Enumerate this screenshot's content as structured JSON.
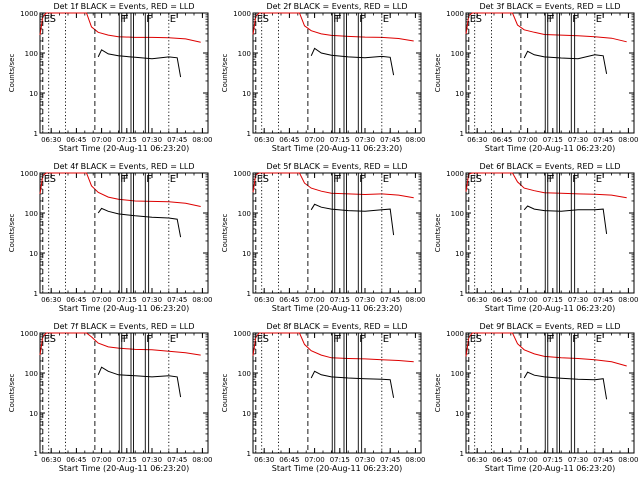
{
  "figure": {
    "colors": {
      "events": "#000000",
      "lld": "#dd0000",
      "axes": "#000000"
    },
    "panels": [
      {
        "title": "Det 1f BLACK = Events, RED = LLD"
      },
      {
        "title": "Det 2f BLACK = Events, RED = LLD"
      },
      {
        "title": "Det 3f BLACK = Events, RED = LLD"
      },
      {
        "title": "Det 4f BLACK = Events, RED = LLD"
      },
      {
        "title": "Det 5f BLACK = Events, RED = LLD"
      },
      {
        "title": "Det 6f BLACK = Events, RED = LLD"
      },
      {
        "title": "Det 7f BLACK = Events, RED = LLD"
      },
      {
        "title": "Det 8f BLACK = Events, RED = LLD"
      },
      {
        "title": "Det 9f BLACK = Events, RED = LLD"
      }
    ]
  },
  "chart_data": {
    "type": "line",
    "layout": "3x3 grid",
    "xlabel": "Start Time (20-Aug-11 06:23:20)",
    "ylabel": "Counts/sec",
    "xlim": [
      "06:23:20",
      "08:03:20"
    ],
    "xticks": [
      "06:30",
      "06:45",
      "07:00",
      "07:15",
      "07:30",
      "07:45",
      "08:00"
    ],
    "ylim": [
      1,
      1000
    ],
    "yscale": "log",
    "yticks": [
      "1",
      "10",
      "100",
      "1000"
    ],
    "markers": [
      {
        "label": "E",
        "time": "06:25:00",
        "style": "dashed"
      },
      {
        "label": "S",
        "time": "06:28:30",
        "style": "dotted"
      },
      {
        "label": "",
        "time": "06:38:30",
        "style": "dotted"
      },
      {
        "label": "",
        "time": "06:56:00",
        "style": "dashed"
      },
      {
        "label": "F",
        "time": "07:10:30",
        "style": "solid"
      },
      {
        "label": "F",
        "time": "07:12:00",
        "style": "solid"
      },
      {
        "label": "",
        "time": "07:17:30",
        "style": "solid"
      },
      {
        "label": "",
        "time": "07:19:00",
        "style": "solid"
      },
      {
        "label": "F",
        "time": "07:26:00",
        "style": "solid"
      },
      {
        "label": "",
        "time": "07:28:00",
        "style": "solid"
      },
      {
        "label": "E",
        "time": "07:40:00",
        "style": "dotted"
      }
    ],
    "panels": [
      {
        "title": "Det 1f BLACK = Events, RED = LLD",
        "series": [
          {
            "x": [
              "06:23:20",
              "06:25:00",
              "06:27:00",
              "06:28:00",
              "06:29:00",
              "06:50:00",
              "06:51:00",
              "06:54:00",
              "06:58:00",
              "07:04:00",
              "07:10:00",
              "07:20:00",
              "07:30:00",
              "07:40:00",
              "07:50:00",
              "07:59:00"
            ],
            "values": [
              280,
              800,
              1000,
              1000,
              1000,
              1000,
              1000,
              450,
              330,
              280,
              255,
              245,
              245,
              240,
              225,
              185
            ],
            "color": "#dd0000"
          },
          {
            "x": [
              "06:58:00",
              "07:00:00",
              "07:04:00",
              "07:10:00",
              "07:20:00",
              "07:30:00",
              "07:40:00",
              "07:45:00",
              "07:47:00"
            ],
            "values": [
              80,
              120,
              95,
              85,
              78,
              72,
              80,
              76,
              25
            ],
            "color": "#000000"
          }
        ]
      },
      {
        "title": "Det 2f BLACK = Events, RED = LLD",
        "series": [
          {
            "x": [
              "06:23:20",
              "06:25:00",
              "06:27:00",
              "06:28:00",
              "06:29:00",
              "06:50:00",
              "06:51:00",
              "06:54:00",
              "06:58:00",
              "07:04:00",
              "07:10:00",
              "07:20:00",
              "07:30:00",
              "07:40:00",
              "07:50:00",
              "07:59:00"
            ],
            "values": [
              290,
              820,
              1000,
              1000,
              1000,
              1000,
              1000,
              480,
              360,
              300,
              275,
              260,
              250,
              245,
              230,
              200
            ],
            "color": "#dd0000"
          },
          {
            "x": [
              "06:58:00",
              "07:00:00",
              "07:04:00",
              "07:10:00",
              "07:20:00",
              "07:30:00",
              "07:40:00",
              "07:45:00",
              "07:47:00"
            ],
            "values": [
              85,
              130,
              100,
              88,
              80,
              76,
              82,
              78,
              28
            ],
            "color": "#000000"
          }
        ]
      },
      {
        "title": "Det 3f BLACK = Events, RED = LLD",
        "series": [
          {
            "x": [
              "06:23:20",
              "06:25:00",
              "06:27:00",
              "06:28:00",
              "06:29:00",
              "06:50:00",
              "06:51:00",
              "06:54:00",
              "06:58:00",
              "07:04:00",
              "07:10:00",
              "07:20:00",
              "07:30:00",
              "07:40:00",
              "07:50:00",
              "07:59:00"
            ],
            "values": [
              300,
              850,
              1000,
              1000,
              1000,
              1000,
              1000,
              500,
              380,
              330,
              290,
              280,
              270,
              255,
              235,
              190
            ],
            "color": "#dd0000"
          },
          {
            "x": [
              "06:58:00",
              "07:00:00",
              "07:04:00",
              "07:10:00",
              "07:20:00",
              "07:30:00",
              "07:40:00",
              "07:45:00",
              "07:47:00"
            ],
            "values": [
              75,
              110,
              90,
              80,
              75,
              72,
              90,
              85,
              30
            ],
            "color": "#000000"
          }
        ]
      },
      {
        "title": "Det 4f BLACK = Events, RED = LLD",
        "series": [
          {
            "x": [
              "06:23:20",
              "06:25:00",
              "06:27:00",
              "06:28:00",
              "06:29:00",
              "06:50:00",
              "06:51:00",
              "06:54:00",
              "06:58:00",
              "07:04:00",
              "07:10:00",
              "07:20:00",
              "07:30:00",
              "07:40:00",
              "07:50:00",
              "07:59:00"
            ],
            "values": [
              300,
              850,
              1000,
              1000,
              1000,
              1000,
              1000,
              480,
              330,
              250,
              220,
              200,
              195,
              190,
              175,
              145
            ],
            "color": "#dd0000"
          },
          {
            "x": [
              "06:58:00",
              "07:00:00",
              "07:04:00",
              "07:10:00",
              "07:20:00",
              "07:30:00",
              "07:40:00",
              "07:45:00",
              "07:47:00"
            ],
            "values": [
              100,
              130,
              110,
              95,
              85,
              78,
              75,
              70,
              25
            ],
            "color": "#000000"
          }
        ]
      },
      {
        "title": "Det 5f BLACK = Events, RED = LLD",
        "series": [
          {
            "x": [
              "06:23:20",
              "06:25:00",
              "06:27:00",
              "06:28:00",
              "06:29:00",
              "06:50:00",
              "06:51:00",
              "06:54:00",
              "06:58:00",
              "07:04:00",
              "07:10:00",
              "07:20:00",
              "07:30:00",
              "07:40:00",
              "07:50:00",
              "07:59:00"
            ],
            "values": [
              330,
              900,
              1000,
              1000,
              1000,
              1000,
              1000,
              560,
              420,
              350,
              310,
              300,
              290,
              300,
              280,
              240
            ],
            "color": "#dd0000"
          },
          {
            "x": [
              "06:58:00",
              "07:00:00",
              "07:04:00",
              "07:10:00",
              "07:20:00",
              "07:30:00",
              "07:40:00",
              "07:45:00",
              "07:47:00"
            ],
            "values": [
              120,
              165,
              140,
              125,
              115,
              110,
              120,
              125,
              28
            ],
            "color": "#000000"
          }
        ]
      },
      {
        "title": "Det 6f BLACK = Events, RED = LLD",
        "series": [
          {
            "x": [
              "06:23:20",
              "06:25:00",
              "06:27:00",
              "06:28:00",
              "06:29:00",
              "06:50:00",
              "06:51:00",
              "06:54:00",
              "06:58:00",
              "07:04:00",
              "07:10:00",
              "07:20:00",
              "07:30:00",
              "07:40:00",
              "07:50:00",
              "07:59:00"
            ],
            "values": [
              340,
              950,
              1000,
              1000,
              1000,
              1000,
              1000,
              600,
              420,
              360,
              320,
              310,
              300,
              295,
              280,
              240
            ],
            "color": "#dd0000"
          },
          {
            "x": [
              "06:58:00",
              "07:00:00",
              "07:04:00",
              "07:10:00",
              "07:20:00",
              "07:30:00",
              "07:40:00",
              "07:45:00",
              "07:47:00"
            ],
            "values": [
              120,
              150,
              125,
              115,
              110,
              120,
              120,
              125,
              30
            ],
            "color": "#000000"
          }
        ]
      },
      {
        "title": "Det 7f BLACK = Events, RED = LLD",
        "series": [
          {
            "x": [
              "06:23:20",
              "06:25:00",
              "06:27:00",
              "06:28:00",
              "06:29:00",
              "06:50:00",
              "06:51:00",
              "06:54:00",
              "06:58:00",
              "07:04:00",
              "07:10:00",
              "07:20:00",
              "07:30:00",
              "07:40:00",
              "07:50:00",
              "07:59:00"
            ],
            "values": [
              280,
              800,
              1000,
              1000,
              1000,
              1000,
              1000,
              800,
              560,
              450,
              420,
              390,
              380,
              350,
              320,
              280
            ],
            "color": "#dd0000"
          },
          {
            "x": [
              "06:58:00",
              "07:00:00",
              "07:04:00",
              "07:10:00",
              "07:20:00",
              "07:30:00",
              "07:40:00",
              "07:45:00",
              "07:47:00"
            ],
            "values": [
              90,
              140,
              110,
              90,
              85,
              80,
              85,
              80,
              25
            ],
            "color": "#000000"
          }
        ]
      },
      {
        "title": "Det 8f BLACK = Events, RED = LLD",
        "series": [
          {
            "x": [
              "06:23:20",
              "06:25:00",
              "06:27:00",
              "06:28:00",
              "06:29:00",
              "06:50:00",
              "06:51:00",
              "06:54:00",
              "06:58:00",
              "07:04:00",
              "07:10:00",
              "07:20:00",
              "07:30:00",
              "07:40:00",
              "07:50:00",
              "07:59:00"
            ],
            "values": [
              270,
              780,
              1000,
              1000,
              1000,
              1000,
              1000,
              520,
              360,
              280,
              240,
              230,
              225,
              215,
              205,
              190
            ],
            "color": "#dd0000"
          },
          {
            "x": [
              "06:58:00",
              "07:00:00",
              "07:04:00",
              "07:10:00",
              "07:20:00",
              "07:30:00",
              "07:40:00",
              "07:45:00",
              "07:47:00"
            ],
            "values": [
              75,
              110,
              90,
              80,
              75,
              72,
              70,
              68,
              24
            ],
            "color": "#000000"
          }
        ]
      },
      {
        "title": "Det 9f BLACK = Events, RED = LLD",
        "series": [
          {
            "x": [
              "06:23:20",
              "06:25:00",
              "06:27:00",
              "06:28:00",
              "06:29:00",
              "06:50:00",
              "06:51:00",
              "06:54:00",
              "06:58:00",
              "07:04:00",
              "07:10:00",
              "07:20:00",
              "07:30:00",
              "07:40:00",
              "07:50:00",
              "07:59:00"
            ],
            "values": [
              260,
              760,
              1000,
              1000,
              1000,
              1000,
              1000,
              540,
              380,
              300,
              260,
              240,
              230,
              215,
              190,
              150
            ],
            "color": "#dd0000"
          },
          {
            "x": [
              "06:58:00",
              "07:00:00",
              "07:04:00",
              "07:10:00",
              "07:20:00",
              "07:30:00",
              "07:40:00",
              "07:45:00",
              "07:47:00"
            ],
            "values": [
              75,
              105,
              88,
              80,
              74,
              70,
              68,
              72,
              22
            ],
            "color": "#000000"
          }
        ]
      }
    ]
  }
}
